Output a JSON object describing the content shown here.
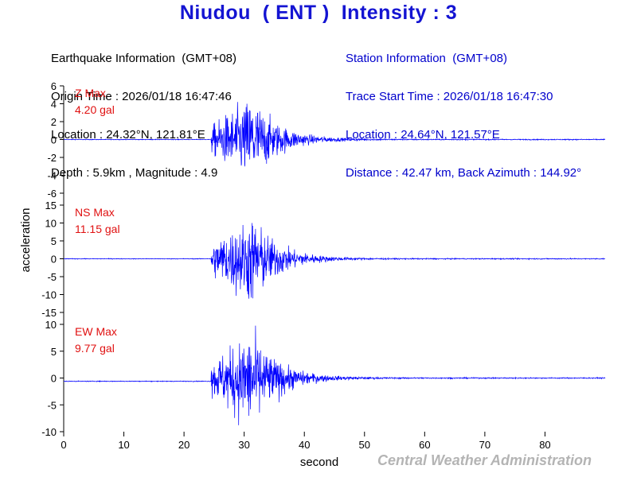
{
  "title": "Niudou  ( ENT )  Intensity : 3",
  "earthquake_info": {
    "heading": "Earthquake Information  (GMT+08)",
    "origin_time": "Origin Time : 2026/01/18 16:47:46",
    "location": "Location : 24.32°N, 121.81°E",
    "depth_magnitude": "Depth : 5.9km , Magnitude : 4.9"
  },
  "station_info": {
    "heading": "Station Information  (GMT+08)",
    "trace_start": "Trace Start Time : 2026/01/18 16:47:30",
    "location": "Location : 24.64°N, 121.57°E",
    "distance": "Distance : 42.47 km, Back Azimuth : 144.92°"
  },
  "footer": "Central Weather Administration",
  "colors": {
    "trace": "#0000ff",
    "label": "#e01010",
    "title": "#1414d2",
    "axis": "#000000"
  },
  "chart_data": {
    "type": "line",
    "xlabel": "second",
    "ylabel": "acceleration",
    "xlim": [
      0,
      90
    ],
    "xticks": [
      0,
      10,
      20,
      30,
      40,
      50,
      60,
      70,
      80
    ],
    "signal_start": 24.5,
    "peak_time": 31.5,
    "panels": [
      {
        "component": "Z",
        "max_label": "Z Max",
        "max_value": "4.20 gal",
        "ylim": [
          -6,
          6
        ],
        "yticks": [
          6,
          4,
          2,
          0,
          -2,
          -4,
          -6
        ],
        "peak": 4.2,
        "min": -3.0,
        "baseline": 0
      },
      {
        "component": "NS",
        "max_label": "NS Max",
        "max_value": "11.15 gal",
        "ylim": [
          -15,
          15
        ],
        "yticks": [
          15,
          10,
          5,
          0,
          -5,
          -10,
          -15
        ],
        "peak": 10.0,
        "min": -11.15,
        "baseline": 0
      },
      {
        "component": "EW",
        "max_label": "EW Max",
        "max_value": "9.77 gal",
        "ylim": [
          -10,
          10
        ],
        "yticks": [
          10,
          5,
          0,
          -5,
          -10
        ],
        "peak": 9.77,
        "min": -8.8,
        "baseline": -0.6
      }
    ]
  }
}
